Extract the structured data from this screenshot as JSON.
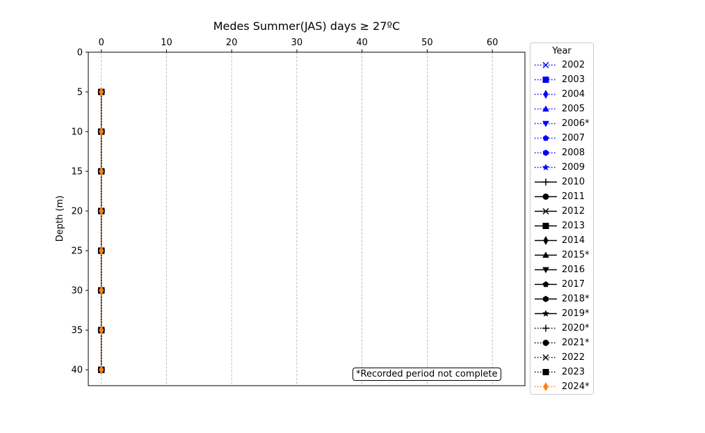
{
  "chart_data": {
    "type": "line",
    "title": "Medes Summer(JAS) days ≥ 27ºC",
    "xlabel": "",
    "ylabel": "Depth (m)",
    "x_axis_position": "top",
    "y_inverted": true,
    "xlim": [
      -2,
      65
    ],
    "ylim": [
      42,
      0
    ],
    "x_ticks": [
      0,
      10,
      20,
      30,
      40,
      50,
      60
    ],
    "y_ticks": [
      0,
      5,
      10,
      15,
      20,
      25,
      30,
      35,
      40
    ],
    "grid": "x",
    "legend_title": "Year",
    "legend_position": "outside-right",
    "annotation": "*Recorded period not complete",
    "depths": [
      5,
      10,
      15,
      20,
      25,
      30,
      35,
      40
    ],
    "series": [
      {
        "name": "2002",
        "values": [
          0,
          0,
          0,
          0,
          0,
          0,
          0,
          0
        ],
        "color": "#0000ff",
        "linestyle": "dotted",
        "marker": "x"
      },
      {
        "name": "2003",
        "values": [
          0,
          0,
          0,
          0,
          0,
          0,
          0,
          0
        ],
        "color": "#0000ff",
        "linestyle": "dotted",
        "marker": "square"
      },
      {
        "name": "2004",
        "values": [
          0,
          0,
          0,
          0,
          0,
          0,
          0,
          0
        ],
        "color": "#0000ff",
        "linestyle": "dotted",
        "marker": "thin-diamond"
      },
      {
        "name": "2005",
        "values": [
          0,
          0,
          0,
          0,
          0,
          0,
          0,
          0
        ],
        "color": "#0000ff",
        "linestyle": "dotted",
        "marker": "triangle-up"
      },
      {
        "name": "2006*",
        "values": [
          0,
          0,
          0,
          0,
          0,
          0,
          0,
          0
        ],
        "color": "#0000ff",
        "linestyle": "dotted",
        "marker": "triangle-down"
      },
      {
        "name": "2007",
        "values": [
          0,
          0,
          0,
          0,
          0,
          0,
          0,
          0
        ],
        "color": "#0000ff",
        "linestyle": "dotted",
        "marker": "pentagon"
      },
      {
        "name": "2008",
        "values": [
          0,
          0,
          0,
          0,
          0,
          0,
          0,
          0
        ],
        "color": "#0000ff",
        "linestyle": "dotted",
        "marker": "hexagon"
      },
      {
        "name": "2009",
        "values": [
          0,
          0,
          0,
          0,
          0,
          0,
          0,
          0
        ],
        "color": "#0000ff",
        "linestyle": "dotted",
        "marker": "star"
      },
      {
        "name": "2010",
        "values": [
          0,
          0,
          0,
          0,
          0,
          0,
          0,
          0
        ],
        "color": "#000000",
        "linestyle": "solid",
        "marker": "plus"
      },
      {
        "name": "2011",
        "values": [
          0,
          0,
          0,
          0,
          0,
          0,
          0,
          0
        ],
        "color": "#000000",
        "linestyle": "solid",
        "marker": "circle"
      },
      {
        "name": "2012",
        "values": [
          0,
          0,
          0,
          0,
          0,
          0,
          0,
          0
        ],
        "color": "#000000",
        "linestyle": "solid",
        "marker": "x"
      },
      {
        "name": "2013",
        "values": [
          0,
          0,
          0,
          0,
          0,
          0,
          0,
          0
        ],
        "color": "#000000",
        "linestyle": "solid",
        "marker": "square"
      },
      {
        "name": "2014",
        "values": [
          0,
          0,
          0,
          0,
          0,
          0,
          0,
          0
        ],
        "color": "#000000",
        "linestyle": "solid",
        "marker": "thin-diamond"
      },
      {
        "name": "2015*",
        "values": [
          0,
          0,
          0,
          0,
          0,
          0,
          0,
          0
        ],
        "color": "#000000",
        "linestyle": "solid",
        "marker": "triangle-up"
      },
      {
        "name": "2016",
        "values": [
          0,
          0,
          0,
          0,
          0,
          0,
          0,
          0
        ],
        "color": "#000000",
        "linestyle": "solid",
        "marker": "triangle-down"
      },
      {
        "name": "2017",
        "values": [
          0,
          0,
          0,
          0,
          0,
          0,
          0,
          0
        ],
        "color": "#000000",
        "linestyle": "solid",
        "marker": "pentagon"
      },
      {
        "name": "2018*",
        "values": [
          0,
          0,
          0,
          0,
          0,
          0,
          0,
          0
        ],
        "color": "#000000",
        "linestyle": "solid",
        "marker": "hexagon"
      },
      {
        "name": "2019*",
        "values": [
          0,
          0,
          0,
          0,
          0,
          0,
          0,
          0
        ],
        "color": "#000000",
        "linestyle": "solid",
        "marker": "star"
      },
      {
        "name": "2020*",
        "values": [
          0,
          0,
          0,
          0,
          0,
          0,
          0,
          0
        ],
        "color": "#000000",
        "linestyle": "dotted",
        "marker": "plus"
      },
      {
        "name": "2021*",
        "values": [
          0,
          0,
          0,
          0,
          0,
          0,
          0,
          0
        ],
        "color": "#000000",
        "linestyle": "dotted",
        "marker": "circle"
      },
      {
        "name": "2022",
        "values": [
          0,
          0,
          0,
          0,
          0,
          0,
          0,
          0
        ],
        "color": "#000000",
        "linestyle": "dotted",
        "marker": "x"
      },
      {
        "name": "2023",
        "values": [
          0,
          0,
          0,
          0,
          0,
          0,
          0,
          0
        ],
        "color": "#000000",
        "linestyle": "dotted",
        "marker": "square"
      },
      {
        "name": "2024*",
        "values": [
          0,
          0,
          0,
          0,
          0,
          0,
          0,
          0
        ],
        "color": "#ff7f0e",
        "linestyle": "dotted",
        "marker": "thin-diamond"
      }
    ]
  }
}
